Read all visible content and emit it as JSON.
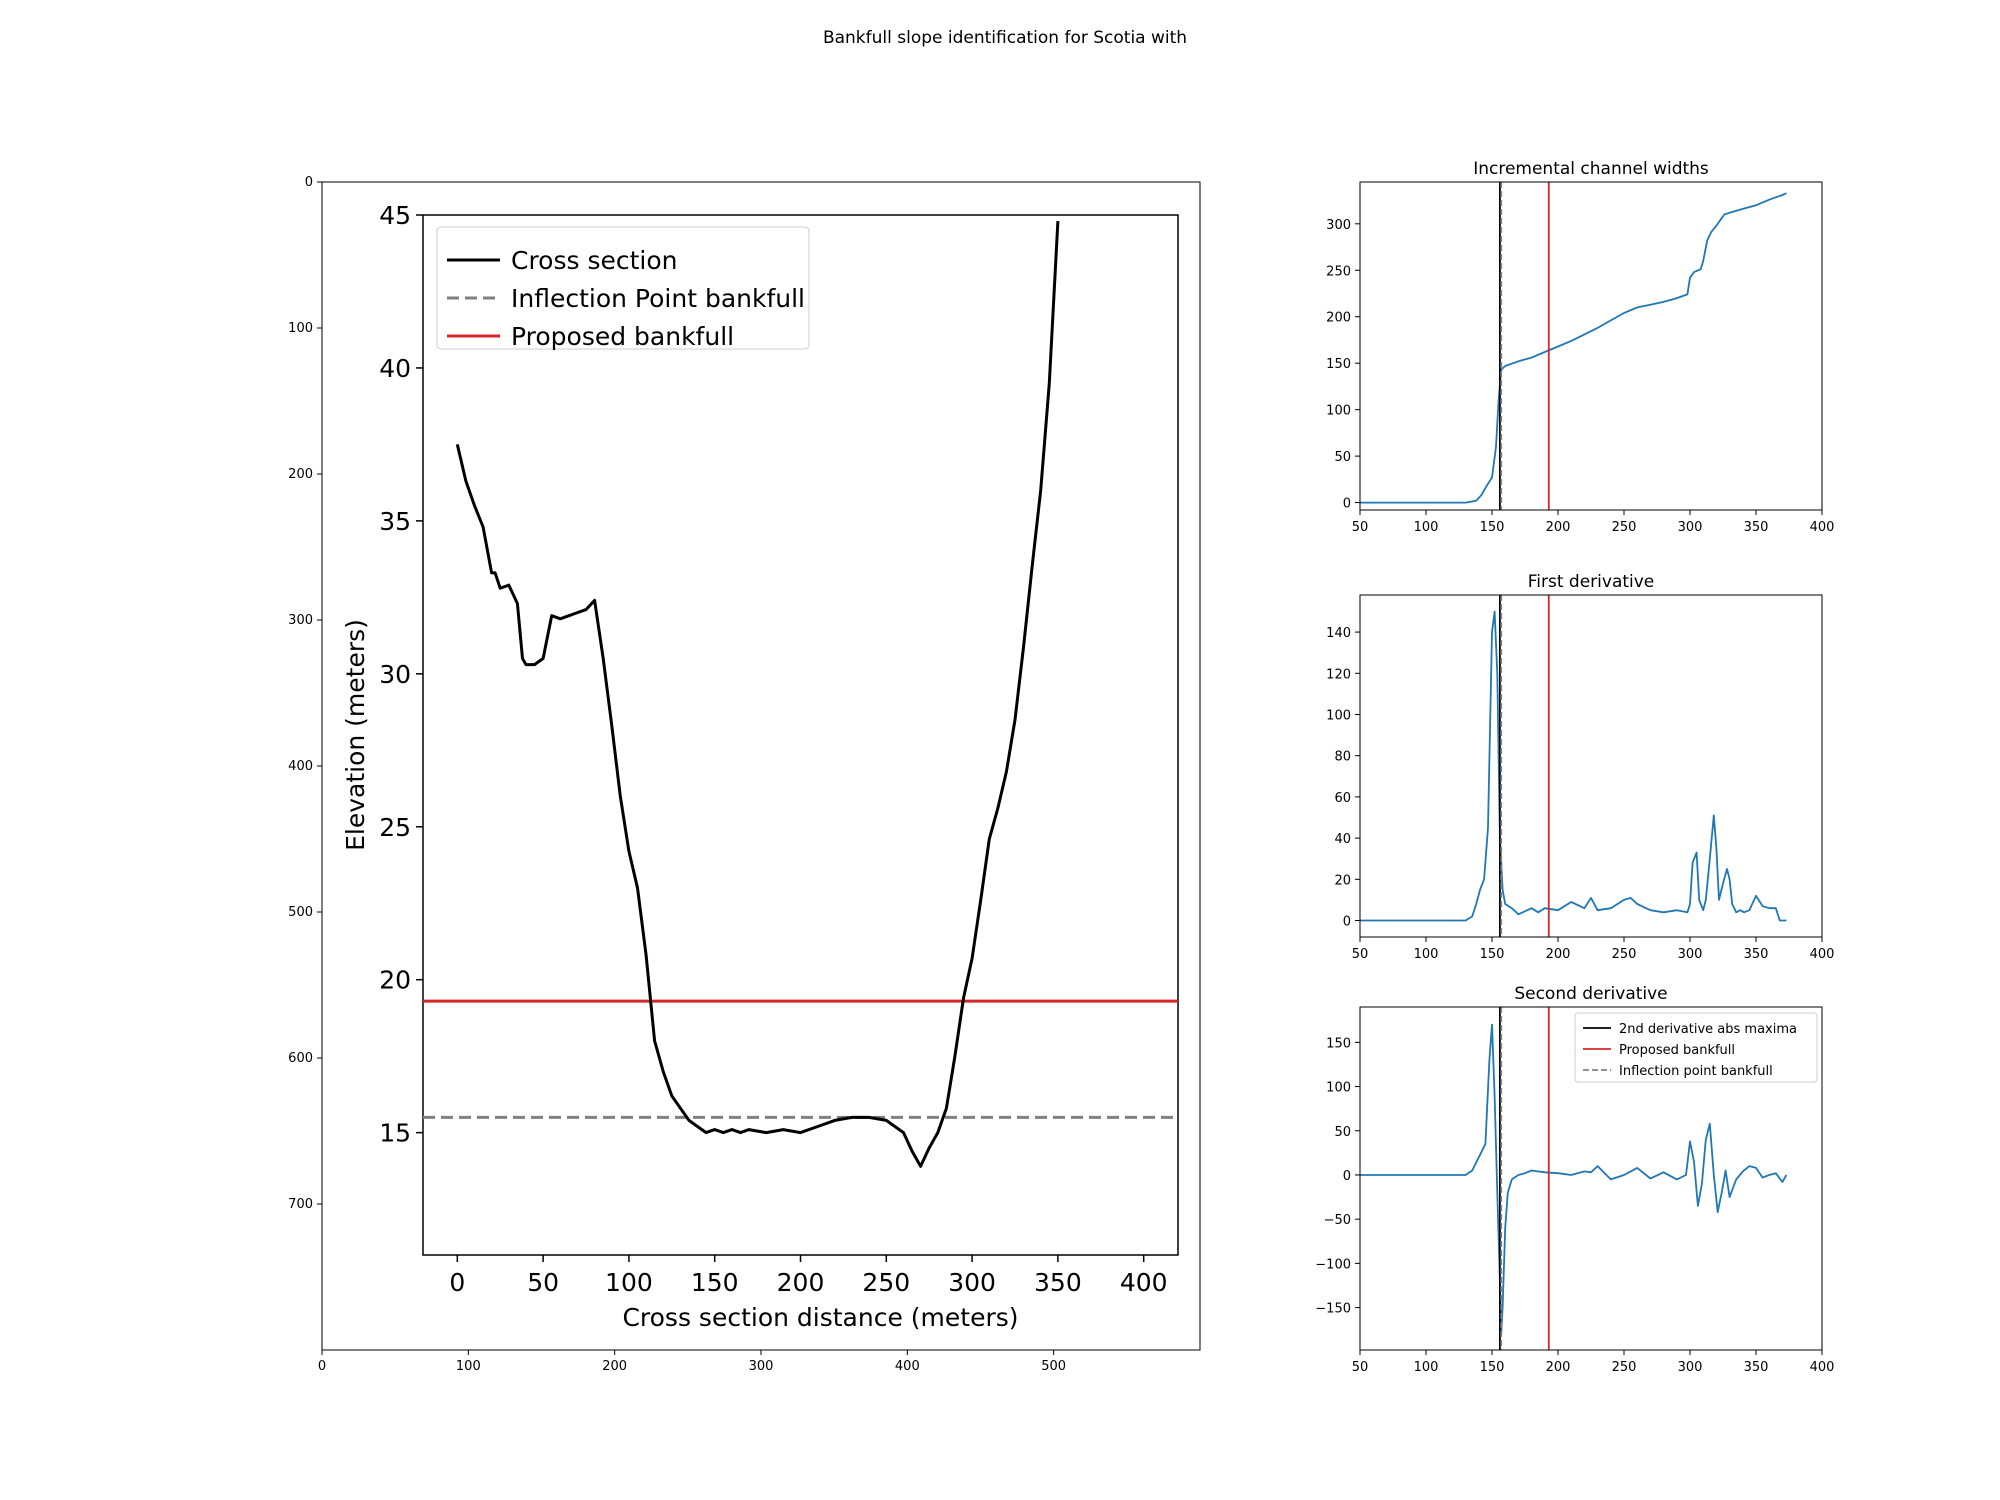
{
  "figure": {
    "suptitle": "Bankfull slope identification for Scotia with"
  },
  "colors": {
    "series_blue": "#1f77b4",
    "proposed_red": "#d62728",
    "maxima_black": "#000000",
    "inflection_gray": "#808080",
    "cross_section_black": "#000000"
  },
  "chart_data": [
    {
      "id": "cross_section_image",
      "type": "line",
      "note_kind": "embedded raster shown with image-pixel axes",
      "outer_axes": {
        "x_ticks": [
          0,
          100,
          200,
          300,
          400,
          500
        ],
        "y_ticks": [
          0,
          100,
          200,
          300,
          400,
          500,
          600,
          700
        ],
        "xlim": [
          0,
          600
        ],
        "ylim": [
          800,
          0
        ]
      },
      "xlabel": "Cross section distance (meters)",
      "ylabel": "Elevation (meters)",
      "xlim": [
        -20,
        420
      ],
      "ylim": [
        11,
        45
      ],
      "x_ticks": [
        0,
        50,
        100,
        150,
        200,
        250,
        300,
        350,
        400
      ],
      "y_ticks": [
        15,
        20,
        25,
        30,
        35,
        40,
        45
      ],
      "legend": {
        "placement": "upper-left",
        "entries": [
          "Cross section",
          "Inflection Point bankfull",
          "Proposed bankfull"
        ]
      },
      "hlines": {
        "inflection_point_bankfull": 15.5,
        "proposed_bankfull": 19.3
      },
      "series": [
        {
          "name": "Cross section",
          "x": [
            0,
            5,
            10,
            15,
            20,
            22,
            25,
            30,
            35,
            38,
            40,
            45,
            50,
            55,
            60,
            65,
            70,
            75,
            80,
            85,
            90,
            95,
            100,
            105,
            110,
            115,
            120,
            125,
            130,
            135,
            140,
            145,
            150,
            155,
            160,
            165,
            170,
            180,
            190,
            200,
            210,
            220,
            230,
            240,
            250,
            260,
            265,
            270,
            275,
            280,
            285,
            290,
            295,
            300,
            305,
            310,
            315,
            320,
            325,
            330,
            335,
            340,
            345,
            350
          ],
          "y": [
            37.5,
            36.3,
            35.5,
            34.8,
            33.3,
            33.3,
            32.8,
            32.9,
            32.3,
            30.5,
            30.3,
            30.3,
            30.5,
            31.9,
            31.8,
            31.9,
            32.0,
            32.1,
            32.4,
            30.5,
            28.3,
            26.0,
            24.2,
            23.0,
            20.8,
            18.0,
            17.0,
            16.2,
            15.8,
            15.4,
            15.2,
            15.0,
            15.1,
            15.0,
            15.1,
            15.0,
            15.1,
            15.0,
            15.1,
            15.0,
            15.2,
            15.4,
            15.5,
            15.5,
            15.4,
            15.0,
            14.4,
            13.9,
            14.5,
            15.0,
            15.8,
            17.5,
            19.4,
            20.7,
            22.6,
            24.6,
            25.6,
            26.8,
            28.5,
            30.9,
            33.5,
            36.0,
            39.5,
            44.8
          ]
        }
      ]
    },
    {
      "id": "incremental_widths",
      "type": "line",
      "title": "Incremental channel widths",
      "xlim": [
        50,
        400
      ],
      "ylim": [
        -8,
        345
      ],
      "x_ticks": [
        50,
        100,
        150,
        200,
        250,
        300,
        350,
        400
      ],
      "y_ticks": [
        0,
        50,
        100,
        150,
        200,
        250,
        300
      ],
      "vlines": {
        "maxima": 156,
        "inflection": 157,
        "proposed": 193
      },
      "series": [
        {
          "name": "",
          "x": [
            50,
            100,
            130,
            138,
            142,
            146,
            150,
            153,
            155,
            157,
            160,
            170,
            180,
            190,
            200,
            210,
            220,
            230,
            240,
            250,
            260,
            270,
            280,
            290,
            298,
            300,
            303,
            308,
            310,
            313,
            316,
            320,
            326,
            330,
            340,
            350,
            360,
            370,
            373
          ],
          "y": [
            0,
            0,
            0,
            2,
            8,
            18,
            27,
            60,
            110,
            143,
            147,
            152,
            156,
            162,
            168,
            174,
            181,
            188,
            196,
            204,
            210,
            213,
            216,
            220,
            224,
            242,
            248,
            251,
            260,
            282,
            291,
            298,
            310,
            312,
            316,
            320,
            326,
            331,
            333
          ]
        }
      ]
    },
    {
      "id": "first_derivative",
      "type": "line",
      "title": "First derivative",
      "xlim": [
        50,
        400
      ],
      "ylim": [
        -8,
        158
      ],
      "x_ticks": [
        50,
        100,
        150,
        200,
        250,
        300,
        350,
        400
      ],
      "y_ticks": [
        0,
        20,
        40,
        60,
        80,
        100,
        120,
        140
      ],
      "vlines": {
        "maxima": 156,
        "inflection": 157,
        "proposed": 193
      },
      "series": [
        {
          "name": "",
          "x": [
            50,
            100,
            130,
            135,
            138,
            141,
            144,
            147,
            150,
            152,
            154,
            156,
            158,
            160,
            165,
            170,
            180,
            185,
            190,
            200,
            210,
            220,
            225,
            230,
            240,
            250,
            255,
            260,
            270,
            280,
            290,
            298,
            300,
            302,
            305,
            307,
            310,
            312,
            315,
            318,
            320,
            322,
            325,
            328,
            330,
            332,
            335,
            338,
            341,
            345,
            350,
            355,
            360,
            365,
            368,
            370,
            373
          ],
          "y": [
            0,
            0,
            0,
            2,
            8,
            15,
            20,
            45,
            140,
            150,
            120,
            40,
            15,
            8,
            6,
            3,
            6,
            4,
            6,
            5,
            9,
            6,
            11,
            5,
            6,
            10,
            11,
            8,
            5,
            4,
            5,
            4,
            8,
            28,
            33,
            10,
            5,
            10,
            30,
            51,
            35,
            10,
            18,
            25,
            20,
            8,
            4,
            5,
            4,
            5,
            12,
            7,
            6,
            6,
            0,
            0,
            0
          ]
        }
      ]
    },
    {
      "id": "second_derivative",
      "type": "line",
      "title": "Second derivative",
      "xlim": [
        50,
        400
      ],
      "ylim": [
        -198,
        190
      ],
      "x_ticks": [
        50,
        100,
        150,
        200,
        250,
        300,
        350,
        400
      ],
      "y_ticks": [
        -150,
        -100,
        -50,
        0,
        50,
        100,
        150
      ],
      "vlines": {
        "maxima": 156,
        "inflection": 157,
        "proposed": 193
      },
      "legend": {
        "placement": "upper-right",
        "entries": [
          "2nd derivative abs maxima",
          "Proposed bankfull",
          "Inflection point bankfull"
        ]
      },
      "series": [
        {
          "name": "",
          "x": [
            50,
            100,
            130,
            135,
            140,
            145,
            148,
            150,
            152,
            154,
            156,
            157,
            158,
            160,
            162,
            165,
            170,
            175,
            180,
            190,
            200,
            210,
            220,
            225,
            230,
            240,
            250,
            260,
            270,
            280,
            290,
            297,
            300,
            303,
            306,
            309,
            312,
            315,
            318,
            321,
            324,
            327,
            330,
            335,
            340,
            345,
            350,
            355,
            360,
            365,
            370,
            373
          ],
          "y": [
            0,
            0,
            0,
            5,
            20,
            35,
            130,
            170,
            90,
            -20,
            -120,
            -180,
            -150,
            -60,
            -20,
            -5,
            0,
            2,
            5,
            3,
            2,
            0,
            4,
            3,
            10,
            -5,
            0,
            8,
            -4,
            3,
            -5,
            0,
            38,
            15,
            -35,
            -10,
            40,
            58,
            0,
            -42,
            -20,
            5,
            -25,
            -5,
            4,
            10,
            8,
            -3,
            0,
            2,
            -8,
            0
          ]
        }
      ]
    }
  ]
}
